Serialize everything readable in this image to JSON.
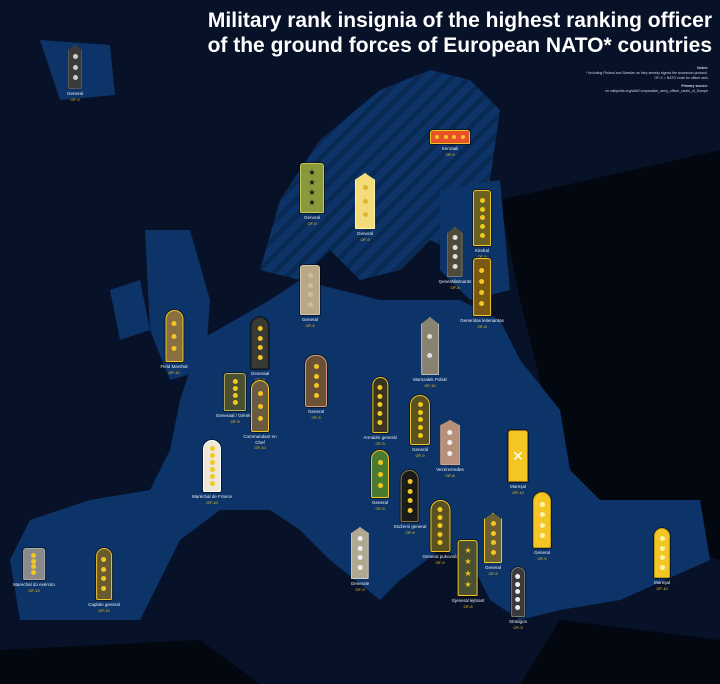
{
  "title": {
    "line1": "Military rank insignia of the highest ranking officer",
    "line2": "of the ground forces of European NATO* countries"
  },
  "notes": {
    "heading": "Notes:",
    "text1": "* Including Finland and Sweden as they already signed the accession protocol.",
    "text2": "OF-X = NATO code for officer rank",
    "source_heading": "Primary source:",
    "source": "en.wikipedia.org/wiki/Comparative_army_officer_ranks_of_Europe"
  },
  "colors": {
    "sea": "#071127",
    "nato_land": "#0d3468",
    "other_land": "#03070f",
    "accent": "#f3c623"
  },
  "insignia": [
    {
      "country": "Iceland",
      "rank": "General",
      "code": "OF-9"
    },
    {
      "country": "Finland",
      "rank": "Kenraali",
      "code": "OF-9"
    },
    {
      "country": "Norway",
      "rank": "General",
      "code": "OF-9"
    },
    {
      "country": "Sweden",
      "rank": "General",
      "code": "OF-9"
    },
    {
      "country": "Estonia",
      "rank": "Kindral",
      "code": "OF-9"
    },
    {
      "country": "Latvia",
      "rank": "Ģenerālleitnants",
      "code": "OF-8"
    },
    {
      "country": "Lithuania",
      "rank": "Generolas leitenantas",
      "code": "OF-8"
    },
    {
      "country": "Denmark",
      "rank": "General",
      "code": "OF-9"
    },
    {
      "country": "United Kingdom",
      "rank": "Field Marshal",
      "code": "OF-10"
    },
    {
      "country": "Netherlands",
      "rank": "Generaal",
      "code": "OF-9"
    },
    {
      "country": "Poland",
      "rank": "Marszałek Polski",
      "code": "OF-10"
    },
    {
      "country": "Belgium",
      "rank": "Generaal / Général",
      "code": "OF-9"
    },
    {
      "country": "Luxembourg",
      "rank": "Commandant en Chef",
      "code": "OF-10"
    },
    {
      "country": "Germany",
      "rank": "General",
      "code": "OF-9"
    },
    {
      "country": "Czechia",
      "rank": "Armádní generál",
      "code": "OF-9"
    },
    {
      "country": "Slovakia",
      "rank": "Generál",
      "code": "OF-9"
    },
    {
      "country": "Hungary",
      "rank": "Vezérezredes",
      "code": "OF-8"
    },
    {
      "country": "Romania",
      "rank": "Mareșal",
      "code": "OF-10"
    },
    {
      "country": "France",
      "rank": "Maréchal de France",
      "code": "OF-10"
    },
    {
      "country": "Slovenia",
      "rank": "General",
      "code": "OF-9"
    },
    {
      "country": "Croatia",
      "rank": "Stožerni general",
      "code": "OF-9"
    },
    {
      "country": "Italy",
      "rank": "Generale",
      "code": "OF-9"
    },
    {
      "country": "Montenegro",
      "rank": "General pukovnik",
      "code": "OF-9"
    },
    {
      "country": "North Macedonia",
      "rank": "General",
      "code": "OF-9"
    },
    {
      "country": "Bulgaria",
      "rank": "General",
      "code": "OF-9"
    },
    {
      "country": "Albania",
      "rank": "Gjeneral lejtnant",
      "code": "OF-8"
    },
    {
      "country": "Greece",
      "rank": "Stratigos",
      "code": "OF-9"
    },
    {
      "country": "Turkey",
      "rank": "Mareşal",
      "code": "OF-10"
    },
    {
      "country": "Portugal",
      "rank": "Marechal do exército",
      "code": "OF-10"
    },
    {
      "country": "Spain",
      "rank": "Capitán general",
      "code": "OF-10"
    }
  ]
}
